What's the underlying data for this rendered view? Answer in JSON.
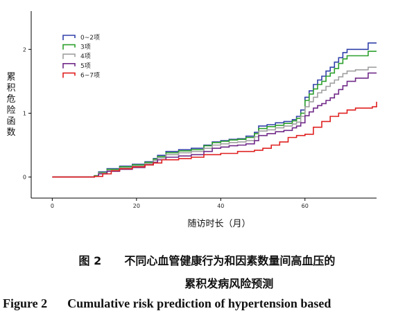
{
  "chart_data": {
    "type": "line",
    "step": true,
    "xlabel": "随访时长（月）",
    "ylabel": "累积危险函数",
    "xlim": [
      -5,
      77
    ],
    "ylim": [
      -0.33,
      2.6
    ],
    "xticks": [
      0,
      20,
      40,
      60
    ],
    "yticks": [
      0,
      1,
      2
    ],
    "grid": false,
    "legend_position": "top-left",
    "series": [
      {
        "name": "0~2项",
        "color": "#3040a8",
        "x": [
          0,
          10,
          11,
          13,
          16,
          19,
          22,
          24,
          25,
          27,
          30,
          33,
          36,
          38,
          40,
          42,
          44,
          46,
          48,
          49,
          51,
          53,
          55,
          57,
          58,
          59,
          60,
          61,
          62,
          63,
          64,
          65,
          66,
          67,
          68,
          69,
          70,
          72,
          75,
          77
        ],
        "y": [
          0,
          0.02,
          0.08,
          0.13,
          0.17,
          0.2,
          0.24,
          0.29,
          0.34,
          0.4,
          0.43,
          0.45,
          0.5,
          0.55,
          0.57,
          0.59,
          0.6,
          0.64,
          0.7,
          0.8,
          0.82,
          0.85,
          0.87,
          0.9,
          0.95,
          1.05,
          1.25,
          1.35,
          1.45,
          1.52,
          1.58,
          1.66,
          1.72,
          1.8,
          1.87,
          1.95,
          2.0,
          2.0,
          2.1,
          2.1
        ]
      },
      {
        "name": "3项",
        "color": "#2ca02c",
        "x": [
          0,
          10,
          11,
          13,
          16,
          19,
          22,
          24,
          25,
          27,
          30,
          33,
          36,
          38,
          40,
          42,
          44,
          46,
          48,
          49,
          51,
          53,
          55,
          57,
          58,
          59,
          60,
          61,
          62,
          63,
          64,
          65,
          66,
          67,
          68,
          69,
          70,
          72,
          75,
          77
        ],
        "y": [
          0,
          0.02,
          0.07,
          0.12,
          0.16,
          0.19,
          0.23,
          0.28,
          0.32,
          0.38,
          0.41,
          0.43,
          0.49,
          0.54,
          0.56,
          0.58,
          0.59,
          0.62,
          0.68,
          0.76,
          0.79,
          0.81,
          0.84,
          0.88,
          0.92,
          1.0,
          1.2,
          1.3,
          1.38,
          1.45,
          1.5,
          1.58,
          1.63,
          1.7,
          1.78,
          1.85,
          1.9,
          1.9,
          1.97,
          1.97
        ]
      },
      {
        "name": "4项",
        "color": "#a0a0a0",
        "x": [
          0,
          10,
          11,
          13,
          16,
          19,
          22,
          24,
          25,
          27,
          30,
          33,
          36,
          38,
          40,
          42,
          44,
          46,
          48,
          49,
          51,
          53,
          55,
          57,
          58,
          59,
          60,
          61,
          62,
          63,
          64,
          65,
          66,
          67,
          68,
          69,
          70,
          72,
          75,
          77
        ],
        "y": [
          0,
          0.01,
          0.06,
          0.1,
          0.14,
          0.17,
          0.21,
          0.26,
          0.3,
          0.35,
          0.38,
          0.4,
          0.45,
          0.5,
          0.52,
          0.54,
          0.55,
          0.57,
          0.63,
          0.72,
          0.74,
          0.77,
          0.8,
          0.83,
          0.86,
          0.95,
          1.1,
          1.18,
          1.25,
          1.32,
          1.36,
          1.42,
          1.47,
          1.52,
          1.57,
          1.62,
          1.66,
          1.68,
          1.72,
          1.72
        ]
      },
      {
        "name": "5项",
        "color": "#702a88",
        "x": [
          0,
          10,
          11,
          13,
          16,
          19,
          22,
          24,
          25,
          27,
          30,
          33,
          36,
          38,
          40,
          42,
          44,
          46,
          48,
          49,
          51,
          53,
          55,
          57,
          58,
          59,
          60,
          61,
          62,
          63,
          64,
          65,
          66,
          67,
          68,
          69,
          70,
          72,
          75,
          77
        ],
        "y": [
          0,
          0.01,
          0.05,
          0.09,
          0.12,
          0.15,
          0.19,
          0.23,
          0.27,
          0.31,
          0.33,
          0.35,
          0.4,
          0.45,
          0.47,
          0.49,
          0.5,
          0.52,
          0.57,
          0.65,
          0.68,
          0.71,
          0.73,
          0.77,
          0.8,
          0.85,
          0.96,
          1.02,
          1.08,
          1.12,
          1.15,
          1.2,
          1.24,
          1.3,
          1.37,
          1.43,
          1.5,
          1.55,
          1.63,
          1.63
        ]
      },
      {
        "name": "6~7项",
        "color": "#e02020",
        "x": [
          0,
          10,
          12,
          14,
          16,
          19,
          22,
          24,
          26,
          30,
          33,
          36,
          40,
          44,
          48,
          50,
          52,
          54,
          56,
          58,
          60,
          62,
          64,
          66,
          68,
          70,
          72,
          74,
          76,
          77
        ],
        "y": [
          0,
          0.01,
          0.05,
          0.1,
          0.13,
          0.16,
          0.19,
          0.22,
          0.27,
          0.29,
          0.31,
          0.35,
          0.37,
          0.4,
          0.42,
          0.45,
          0.5,
          0.55,
          0.62,
          0.65,
          0.67,
          0.78,
          0.87,
          0.95,
          1.0,
          1.05,
          1.08,
          1.08,
          1.1,
          1.18
        ]
      }
    ]
  },
  "caption": {
    "zh_label": "图 2",
    "zh_line1": "不同心血管健康行为和因素数量间高血压的",
    "zh_line2": "累积发病风险预测",
    "en_label": "Figure 2",
    "en_text": "Cumulative risk prediction of hypertension based"
  }
}
